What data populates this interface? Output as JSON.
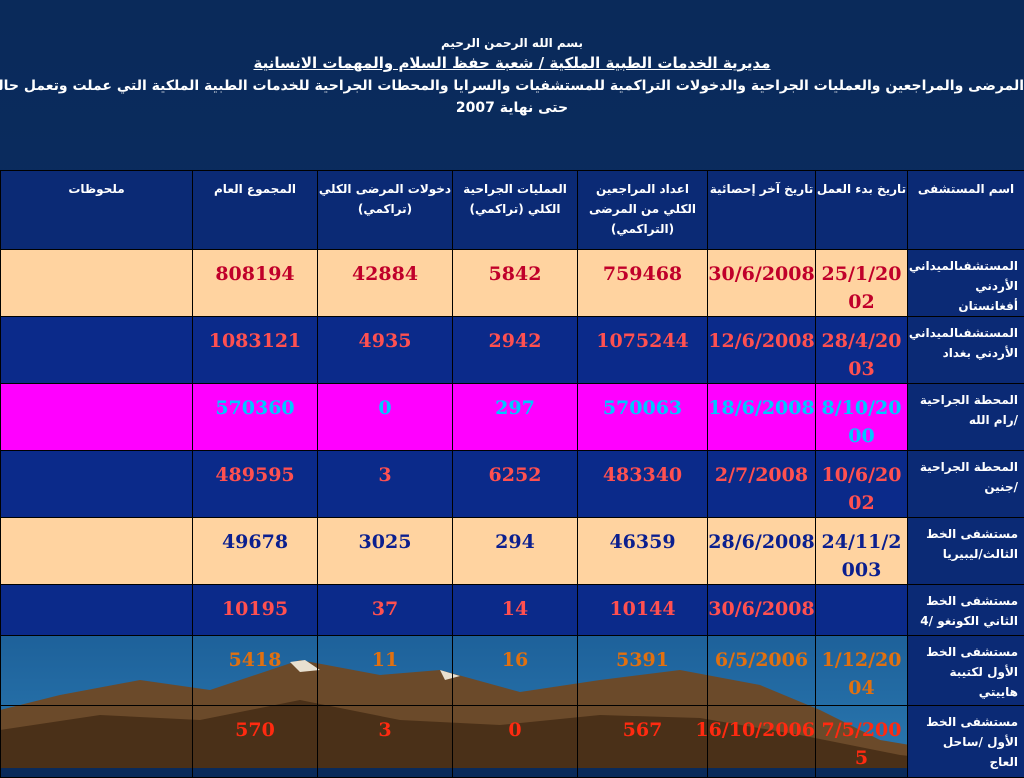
{
  "header": {
    "basmala": "بسم الله الرحمن الرحيم",
    "title": "مديرية الخدمات الطبية الملكية / شعبة حفظ السلام والمهمات الانسانية",
    "subtitle": "المرضى والمراجعين والعمليات الجراحية والدخولات التراكمية للمستشفيات والسرايا والمحطات الجراحية للخدمات الطبية الملكية التي عملت وتعمل حاليا خارج ارض",
    "subtitle2": "حتى نهاية 2007"
  },
  "table": {
    "headers": [
      "اسم المستشفى",
      "تاريخ بدء العمل",
      "تاريخ آخر إحصائية",
      "اعداد المراجعين الكلي من المرضى (التراكمي)",
      "العمليات الجراحية الكلي (تراكمي)",
      "دخولات المرضى الكلي (تراكمي)",
      "المجموع العام",
      "ملحوظات"
    ],
    "rows": [
      {
        "hospital": "المستشفىالميداني الأردني أفغانستان",
        "start": "25/1/2002",
        "last": "30/6/2008",
        "visitors": "759468",
        "surgeries": "5842",
        "admissions": "42884",
        "total": "808194",
        "notes": ""
      },
      {
        "hospital": "المستشفىالميداني الأردني بغداد",
        "start": "28/4/2003",
        "last": "12/6/2008",
        "visitors": "1075244",
        "surgeries": "2942",
        "admissions": "4935",
        "total": "1083121",
        "notes": ""
      },
      {
        "hospital": "المحطة الجراحية /رام الله",
        "start": "8/10/2000",
        "last": "18/6/2008",
        "visitors": "570063",
        "surgeries": "297",
        "admissions": "0",
        "total": "570360",
        "notes": ""
      },
      {
        "hospital": "المحطة الجراحية /جنين",
        "start": "10/6/2002",
        "last": "2/7/2008",
        "visitors": "483340",
        "surgeries": "6252",
        "admissions": "3",
        "total": "489595",
        "notes": ""
      },
      {
        "hospital": "مستشفى الخط الثالث/ليبيريا",
        "start": "24/11/2003",
        "last": "28/6/2008",
        "visitors": "46359",
        "surgeries": "294",
        "admissions": "3025",
        "total": "49678",
        "notes": ""
      },
      {
        "hospital": "مستشفى الخط الثاني الكونغو /4",
        "start": "",
        "last": "30/6/2008",
        "visitors": "10144",
        "surgeries": "14",
        "admissions": "37",
        "total": "10195",
        "notes": ""
      },
      {
        "hospital": "مستشفى الخط الأول لكتيبة هاييتي",
        "start": "1/12/2004",
        "last": "6/5/2006",
        "visitors": "5391",
        "surgeries": "16",
        "admissions": "11",
        "total": "5418",
        "notes": ""
      },
      {
        "hospital": "مستشفى الخط الأول /ساحل العاج",
        "start": "7/5/2005",
        "last": "16/10/2006",
        "visitors": "567",
        "surgeries": "0",
        "admissions": "3",
        "total": "570",
        "notes": ""
      }
    ]
  }
}
